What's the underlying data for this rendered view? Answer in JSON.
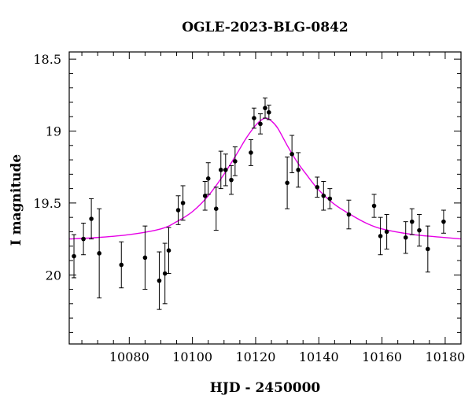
{
  "chart_data": {
    "type": "scatter",
    "title": "OGLE-2023-BLG-0842",
    "xlabel": "HJD - 2450000",
    "ylabel": "I magnitude",
    "xlim": [
      10061,
      10185
    ],
    "ylim": [
      20.48,
      18.45
    ],
    "y_inverted": true,
    "grid": false,
    "x_ticks": [
      10080,
      10100,
      10120,
      10140,
      10160,
      10180
    ],
    "y_ticks": [
      18.5,
      19,
      19.5,
      20
    ],
    "x_tick_labels": [
      "10080",
      "10100",
      "10120",
      "10140",
      "10160",
      "10180"
    ],
    "y_tick_labels": [
      "18.5",
      "19",
      "19.5",
      "20"
    ],
    "series": [
      {
        "kind": "points_with_errorbars",
        "color": "#000000",
        "points": [
          {
            "x": 10062.5,
            "y": 19.87,
            "err": 0.15
          },
          {
            "x": 10065.5,
            "y": 19.75,
            "err": 0.11
          },
          {
            "x": 10068.0,
            "y": 19.61,
            "err": 0.14
          },
          {
            "x": 10070.5,
            "y": 19.85,
            "err": 0.31
          },
          {
            "x": 10077.5,
            "y": 19.93,
            "err": 0.16
          },
          {
            "x": 10085.0,
            "y": 19.88,
            "err": 0.22
          },
          {
            "x": 10089.5,
            "y": 20.04,
            "err": 0.2
          },
          {
            "x": 10091.3,
            "y": 19.99,
            "err": 0.21
          },
          {
            "x": 10092.5,
            "y": 19.83,
            "err": 0.16
          },
          {
            "x": 10095.5,
            "y": 19.55,
            "err": 0.1
          },
          {
            "x": 10097.0,
            "y": 19.5,
            "err": 0.12
          },
          {
            "x": 10104.0,
            "y": 19.45,
            "err": 0.1
          },
          {
            "x": 10105.0,
            "y": 19.33,
            "err": 0.11
          },
          {
            "x": 10107.5,
            "y": 19.54,
            "err": 0.15
          },
          {
            "x": 10109.0,
            "y": 19.27,
            "err": 0.13
          },
          {
            "x": 10110.5,
            "y": 19.27,
            "err": 0.11
          },
          {
            "x": 10112.3,
            "y": 19.34,
            "err": 0.1
          },
          {
            "x": 10113.5,
            "y": 19.21,
            "err": 0.1
          },
          {
            "x": 10118.5,
            "y": 19.15,
            "err": 0.09
          },
          {
            "x": 10119.5,
            "y": 18.91,
            "err": 0.07
          },
          {
            "x": 10121.5,
            "y": 18.95,
            "err": 0.07
          },
          {
            "x": 10123.0,
            "y": 18.84,
            "err": 0.07
          },
          {
            "x": 10124.2,
            "y": 18.87,
            "err": 0.05
          },
          {
            "x": 10130.0,
            "y": 19.36,
            "err": 0.18
          },
          {
            "x": 10131.5,
            "y": 19.16,
            "err": 0.13
          },
          {
            "x": 10133.5,
            "y": 19.27,
            "err": 0.12
          },
          {
            "x": 10139.5,
            "y": 19.39,
            "err": 0.07
          },
          {
            "x": 10141.5,
            "y": 19.45,
            "err": 0.1
          },
          {
            "x": 10143.5,
            "y": 19.47,
            "err": 0.07
          },
          {
            "x": 10149.5,
            "y": 19.58,
            "err": 0.1
          },
          {
            "x": 10157.5,
            "y": 19.52,
            "err": 0.08
          },
          {
            "x": 10159.5,
            "y": 19.73,
            "err": 0.13
          },
          {
            "x": 10161.5,
            "y": 19.7,
            "err": 0.12
          },
          {
            "x": 10167.5,
            "y": 19.74,
            "err": 0.11
          },
          {
            "x": 10169.5,
            "y": 19.63,
            "err": 0.09
          },
          {
            "x": 10171.8,
            "y": 19.69,
            "err": 0.11
          },
          {
            "x": 10174.5,
            "y": 19.82,
            "err": 0.16
          },
          {
            "x": 10179.5,
            "y": 19.63,
            "err": 0.08
          }
        ]
      },
      {
        "kind": "model_curve",
        "color": "#e600e6",
        "x": [
          10061,
          10070,
          10080,
          10090,
          10095,
          10100,
          10105,
          10110,
          10114,
          10117,
          10120,
          10122,
          10123.3,
          10125,
          10127,
          10130,
          10133,
          10136,
          10140,
          10145,
          10150,
          10155,
          10160,
          10170,
          10180,
          10185
        ],
        "y": [
          19.75,
          19.74,
          19.72,
          19.68,
          19.63,
          19.56,
          19.45,
          19.3,
          19.16,
          19.05,
          18.96,
          18.92,
          18.91,
          18.93,
          18.98,
          19.1,
          19.21,
          19.3,
          19.41,
          19.51,
          19.58,
          19.64,
          19.68,
          19.72,
          19.74,
          19.75
        ]
      }
    ]
  }
}
